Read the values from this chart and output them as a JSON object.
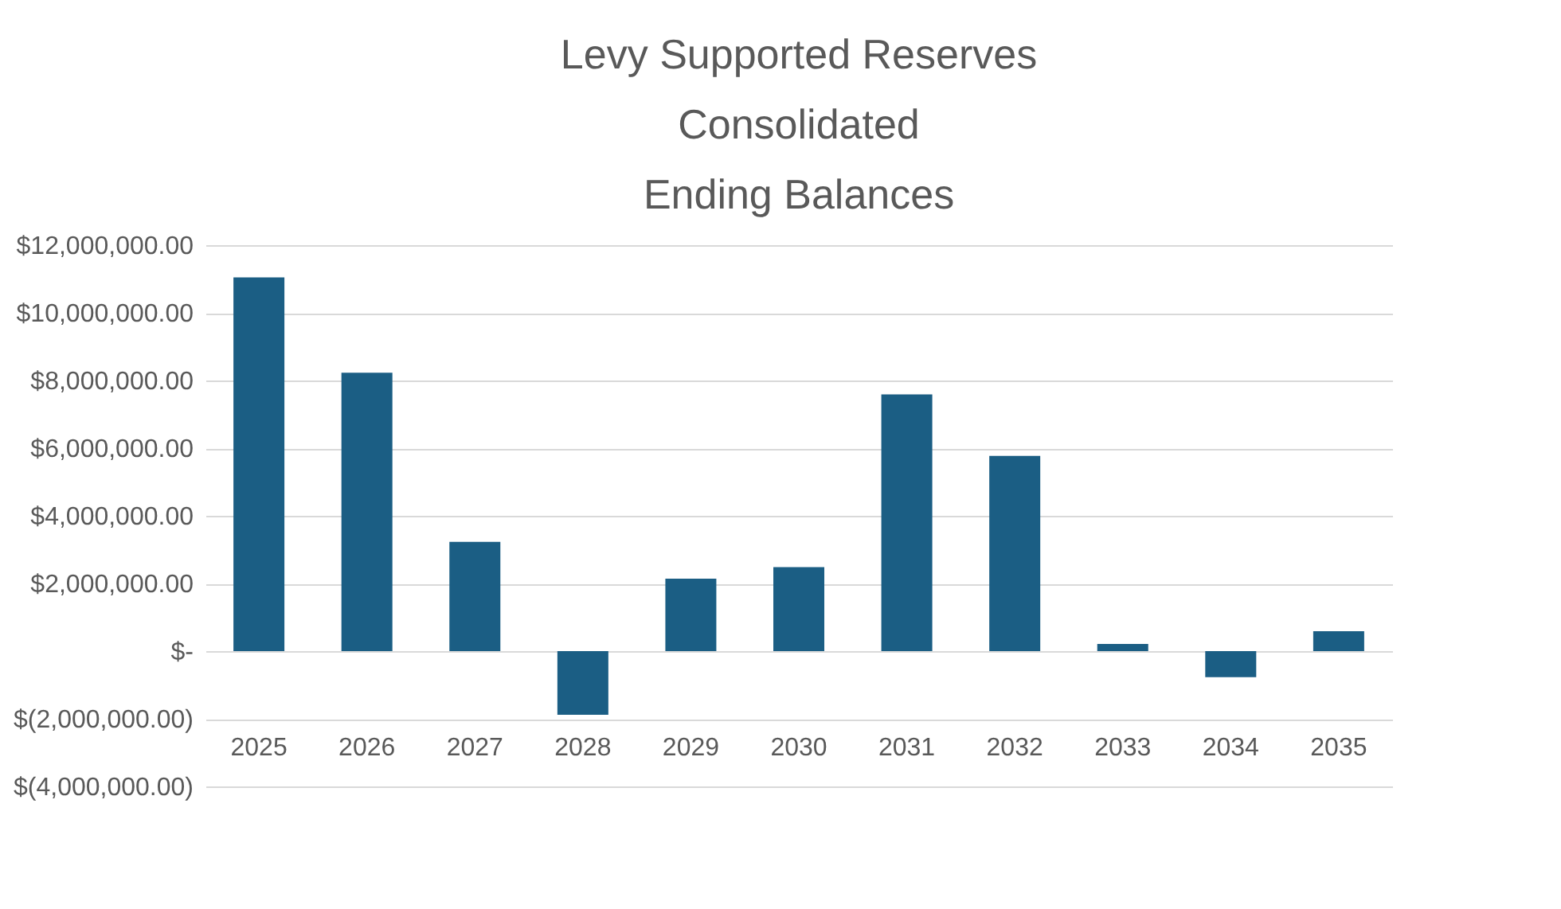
{
  "chart_data": {
    "type": "bar",
    "title": [
      "Levy Supported Reserves",
      "Consolidated",
      "Ending Balances"
    ],
    "categories": [
      "2025",
      "2026",
      "2027",
      "2028",
      "2029",
      "2030",
      "2031",
      "2032",
      "2033",
      "2034",
      "2035"
    ],
    "values": [
      11050000,
      8230000,
      3230000,
      -1880000,
      2140000,
      2480000,
      7590000,
      5770000,
      210000,
      -770000,
      590000
    ],
    "color": "#1b5e84",
    "ylim": [
      -4000000,
      12000000
    ],
    "yticks": [
      {
        "value": -4000000,
        "label": "$(4,000,000.00)"
      },
      {
        "value": -2000000,
        "label": "$(2,000,000.00)"
      },
      {
        "value": 0,
        "label": "$-"
      },
      {
        "value": 2000000,
        "label": "$2,000,000.00"
      },
      {
        "value": 4000000,
        "label": "$4,000,000.00"
      },
      {
        "value": 6000000,
        "label": "$6,000,000.00"
      },
      {
        "value": 8000000,
        "label": "$8,000,000.00"
      },
      {
        "value": 10000000,
        "label": "$10,000,000.00"
      },
      {
        "value": 12000000,
        "label": "$12,000,000.00"
      }
    ],
    "grid": "y"
  }
}
